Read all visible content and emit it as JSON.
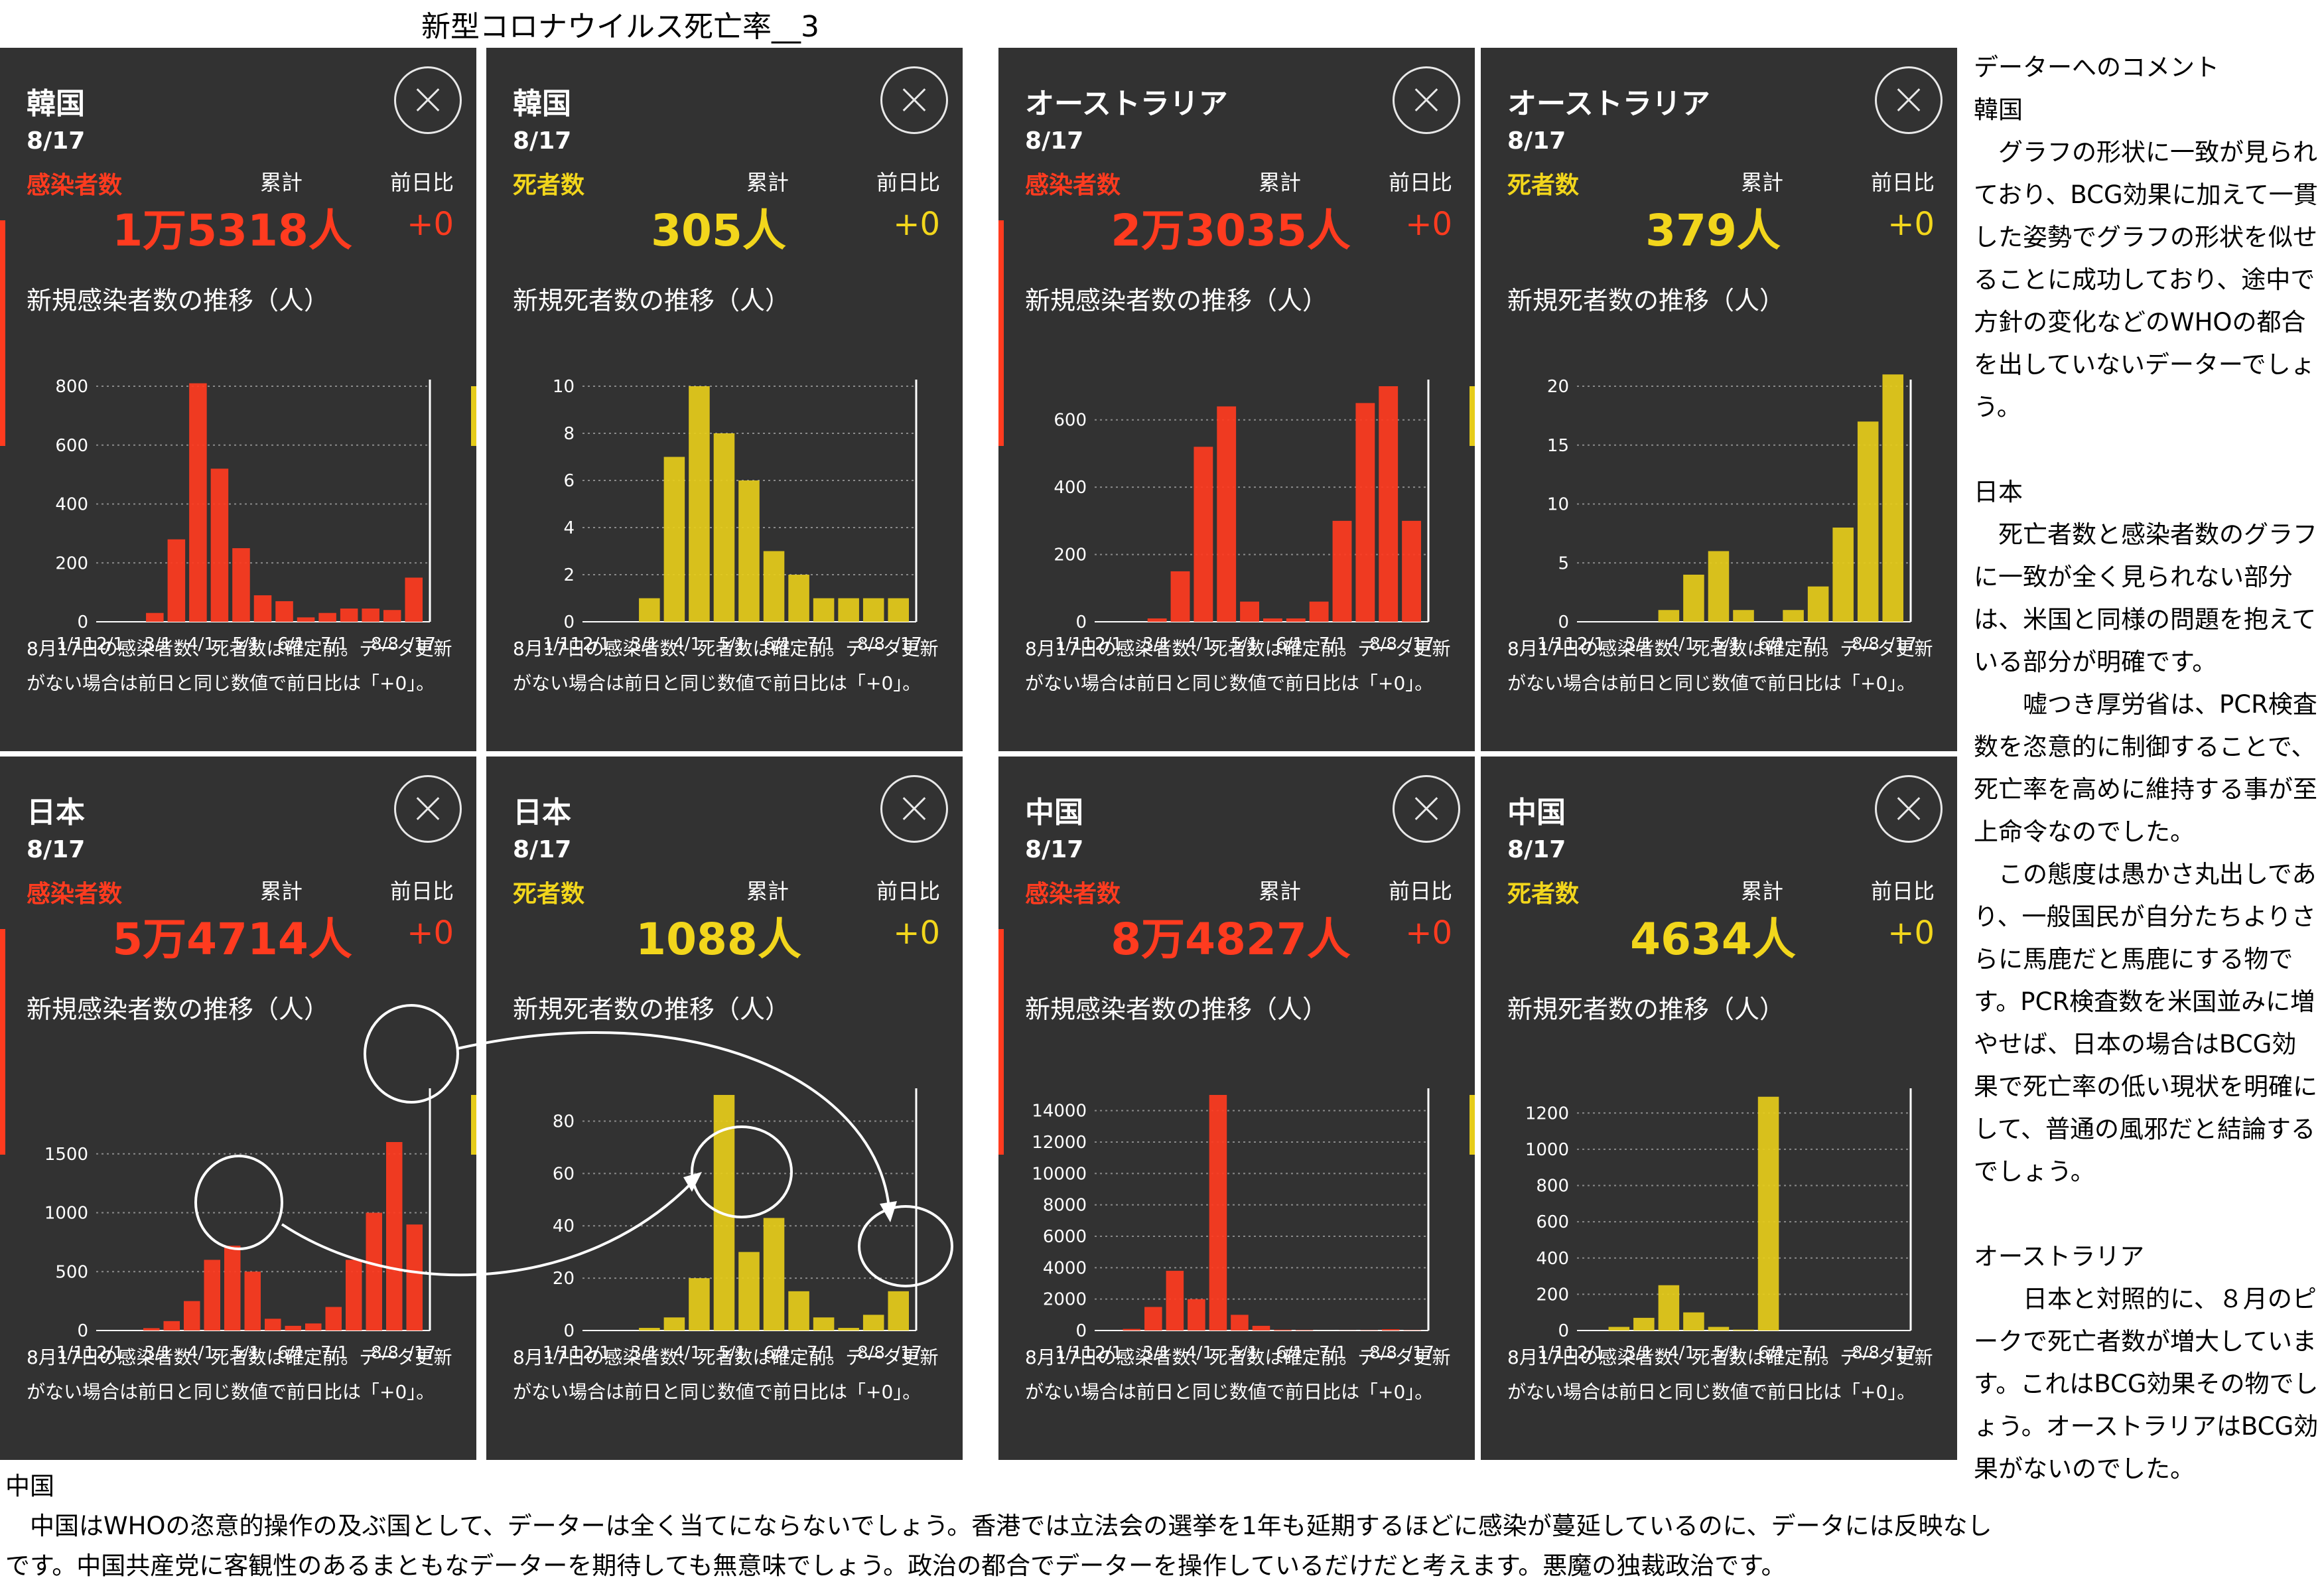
{
  "title": "新型コロナウイルス死亡率__3",
  "panel_common": {
    "date": "8/17",
    "cum_label": "累計",
    "diff_label": "前日比",
    "note": "8月17日の感染者数、死者数は確定前。データ更新がない場合は前日と同じ数値で前日比は「+0」。",
    "x_ticks": [
      "1/11",
      "2/1",
      "3/1",
      "4/1",
      "5/1",
      "6/1",
      "7/1",
      "8/8",
      "/17"
    ]
  },
  "colors": {
    "infection": "#ff3b1f",
    "death": "#e6cc1a",
    "panel_bg": "#323232"
  },
  "panels": [
    {
      "id": "korea-infection",
      "country": "韓国",
      "metric": "感染者数",
      "kind": "infection",
      "total": "1万5318人",
      "diff": "+0",
      "chart_title": "新規感染者数の推移（人）"
    },
    {
      "id": "korea-death",
      "country": "韓国",
      "metric": "死者数",
      "kind": "death",
      "total": "305人",
      "diff": "+0",
      "chart_title": "新規死者数の推移（人）"
    },
    {
      "id": "australia-infection",
      "country": "オーストラリア",
      "metric": "感染者数",
      "kind": "infection",
      "total": "2万3035人",
      "diff": "+0",
      "chart_title": "新規感染者数の推移（人）"
    },
    {
      "id": "australia-death",
      "country": "オーストラリア",
      "metric": "死者数",
      "kind": "death",
      "total": "379人",
      "diff": "+0",
      "chart_title": "新規死者数の推移（人）"
    },
    {
      "id": "japan-infection",
      "country": "日本",
      "metric": "感染者数",
      "kind": "infection",
      "total": "5万4714人",
      "diff": "+0",
      "chart_title": "新規感染者数の推移（人）"
    },
    {
      "id": "japan-death",
      "country": "日本",
      "metric": "死者数",
      "kind": "death",
      "total": "1088人",
      "diff": "+0",
      "chart_title": "新規死者数の推移（人）"
    },
    {
      "id": "china-infection",
      "country": "中国",
      "metric": "感染者数",
      "kind": "infection",
      "total": "8万4827人",
      "diff": "+0",
      "chart_title": "新規感染者数の推移（人）"
    },
    {
      "id": "china-death",
      "country": "中国",
      "metric": "死者数",
      "kind": "death",
      "total": "4634人",
      "diff": "+0",
      "chart_title": "新規死者数の推移（人）"
    }
  ],
  "chart_data": [
    {
      "type": "bar",
      "panel": "korea-infection",
      "ylim": [
        0,
        800
      ],
      "y_ticks": [
        0,
        200,
        400,
        600,
        800
      ],
      "x": [
        "1/11",
        "2/1",
        "2/20",
        "2/25",
        "2/29",
        "3/3",
        "3/8",
        "3/15",
        "4/1",
        "5/1",
        "5/10",
        "6/1",
        "7/1",
        "8/8",
        "8/16"
      ],
      "values": [
        0,
        0,
        30,
        280,
        810,
        520,
        250,
        90,
        70,
        15,
        30,
        45,
        45,
        40,
        150
      ]
    },
    {
      "type": "bar",
      "panel": "korea-death",
      "ylim": [
        0,
        10
      ],
      "y_ticks": [
        0,
        2,
        4,
        6,
        8,
        10
      ],
      "x": [
        "1/11",
        "2/1",
        "2/25",
        "3/5",
        "3/15",
        "3/25",
        "4/1",
        "4/15",
        "5/1",
        "6/1",
        "7/1",
        "8/8",
        "8/17"
      ],
      "values": [
        0,
        0,
        1,
        7,
        10,
        8,
        6,
        3,
        2,
        1,
        1,
        1,
        1
      ]
    },
    {
      "type": "bar",
      "panel": "australia-infection",
      "ylim": [
        0,
        700
      ],
      "y_ticks": [
        0,
        200,
        400,
        600
      ],
      "x": [
        "1/11",
        "2/1",
        "3/1",
        "3/15",
        "3/22",
        "3/28",
        "4/10",
        "5/1",
        "6/1",
        "7/1",
        "7/15",
        "7/30",
        "8/5",
        "8/17"
      ],
      "values": [
        0,
        0,
        10,
        150,
        520,
        640,
        60,
        10,
        10,
        60,
        300,
        650,
        700,
        300
      ]
    },
    {
      "type": "bar",
      "panel": "australia-death",
      "ylim": [
        0,
        20
      ],
      "y_ticks": [
        0,
        5,
        10,
        15,
        20
      ],
      "x": [
        "1/11",
        "2/1",
        "3/1",
        "3/20",
        "4/1",
        "4/10",
        "5/1",
        "6/1",
        "7/1",
        "7/20",
        "8/1",
        "8/10",
        "8/17"
      ],
      "values": [
        0,
        0,
        0,
        1,
        4,
        6,
        1,
        0,
        1,
        3,
        8,
        17,
        21
      ]
    },
    {
      "type": "bar",
      "panel": "japan-infection",
      "ylim": [
        0,
        2000
      ],
      "y_ticks": [
        0,
        500,
        1000,
        1500
      ],
      "x": [
        "1/11",
        "2/1",
        "3/1",
        "3/20",
        "4/1",
        "4/10",
        "4/15",
        "4/25",
        "5/10",
        "6/1",
        "6/20",
        "7/1",
        "7/15",
        "7/25",
        "8/7",
        "8/17"
      ],
      "values": [
        0,
        0,
        20,
        80,
        250,
        600,
        720,
        500,
        100,
        40,
        60,
        200,
        600,
        1000,
        1600,
        900
      ]
    },
    {
      "type": "bar",
      "panel": "japan-death",
      "ylim": [
        0,
        90
      ],
      "y_ticks": [
        0,
        20,
        40,
        60,
        80
      ],
      "x": [
        "1/11",
        "2/1",
        "3/1",
        "4/1",
        "4/20",
        "4/22",
        "5/1",
        "5/3",
        "5/15",
        "6/1",
        "7/1",
        "8/1",
        "8/17"
      ],
      "values": [
        0,
        0,
        1,
        5,
        20,
        90,
        30,
        43,
        15,
        5,
        1,
        6,
        15
      ]
    },
    {
      "type": "bar",
      "panel": "china-infection",
      "ylim": [
        0,
        15000
      ],
      "y_ticks": [
        0,
        2000,
        4000,
        6000,
        8000,
        10000,
        12000,
        14000
      ],
      "x": [
        "1/11",
        "1/20",
        "1/28",
        "2/5",
        "2/12",
        "2/13",
        "2/20",
        "3/1",
        "3/10",
        "4/1",
        "5/1",
        "6/1",
        "7/1",
        "8/1",
        "8/17"
      ],
      "values": [
        0,
        100,
        1500,
        3800,
        2000,
        15000,
        1000,
        300,
        50,
        30,
        5,
        10,
        20,
        80,
        20
      ]
    },
    {
      "type": "bar",
      "panel": "china-death",
      "ylim": [
        0,
        1300
      ],
      "y_ticks": [
        0,
        200,
        400,
        600,
        800,
        1000,
        1200
      ],
      "x": [
        "1/11",
        "1/25",
        "2/5",
        "2/14",
        "2/25",
        "3/10",
        "4/1",
        "4/17",
        "5/1",
        "6/1",
        "7/1",
        "8/1",
        "8/17"
      ],
      "values": [
        0,
        20,
        70,
        250,
        100,
        20,
        5,
        1290,
        0,
        0,
        0,
        0,
        0
      ]
    }
  ],
  "right_comment": {
    "heading": "データーへのコメント",
    "korea_title": "韓国",
    "korea_text": "　グラフの形状に一致が見られており、BCG効果に加えて一貫した姿勢でグラフの形状を似せることに成功しており、途中で方針の変化などのWHOの都合を出していないデーターでしょう。",
    "japan_title": "日本",
    "japan_text1": "　死亡者数と感染者数のグラフに一致が全く見られない部分は、米国と同様の問題を抱えている部分が明確です。",
    "japan_text2": "　　嘘つき厚労省は、PCR検査数を恣意的に制御することで、死亡率を高めに維持する事が至上命令なのでした。",
    "japan_text3": "　この態度は愚かさ丸出しであり、一般国民が自分たちよりさらに馬鹿だと馬鹿にする物です。PCR検査数を米国並みに増やせば、日本の場合はBCG効果で死亡率の低い現状を明確にして、普通の風邪だと結論するでしょう。",
    "australia_title": "オーストラリア",
    "australia_text": "　　日本と対照的に、８月のピークで死亡者数が増大しています。これはBCG効果その物でしょう。オーストラリアはBCG効果がないのでした。"
  },
  "bottom_comment": {
    "title": "中国",
    "text": "　中国はWHOの恣意的操作の及ぶ国として、データーは全く当てにならないでしょう。香港では立法会の選挙を1年も延期するほどに感染が蔓延しているのに、データには反映なしです。中国共産党に客観性のあるまともなデーターを期待しても無意味でしょう。政治の都合でデーターを操作しているだけだと考えます。悪魔の独裁政治です。"
  }
}
